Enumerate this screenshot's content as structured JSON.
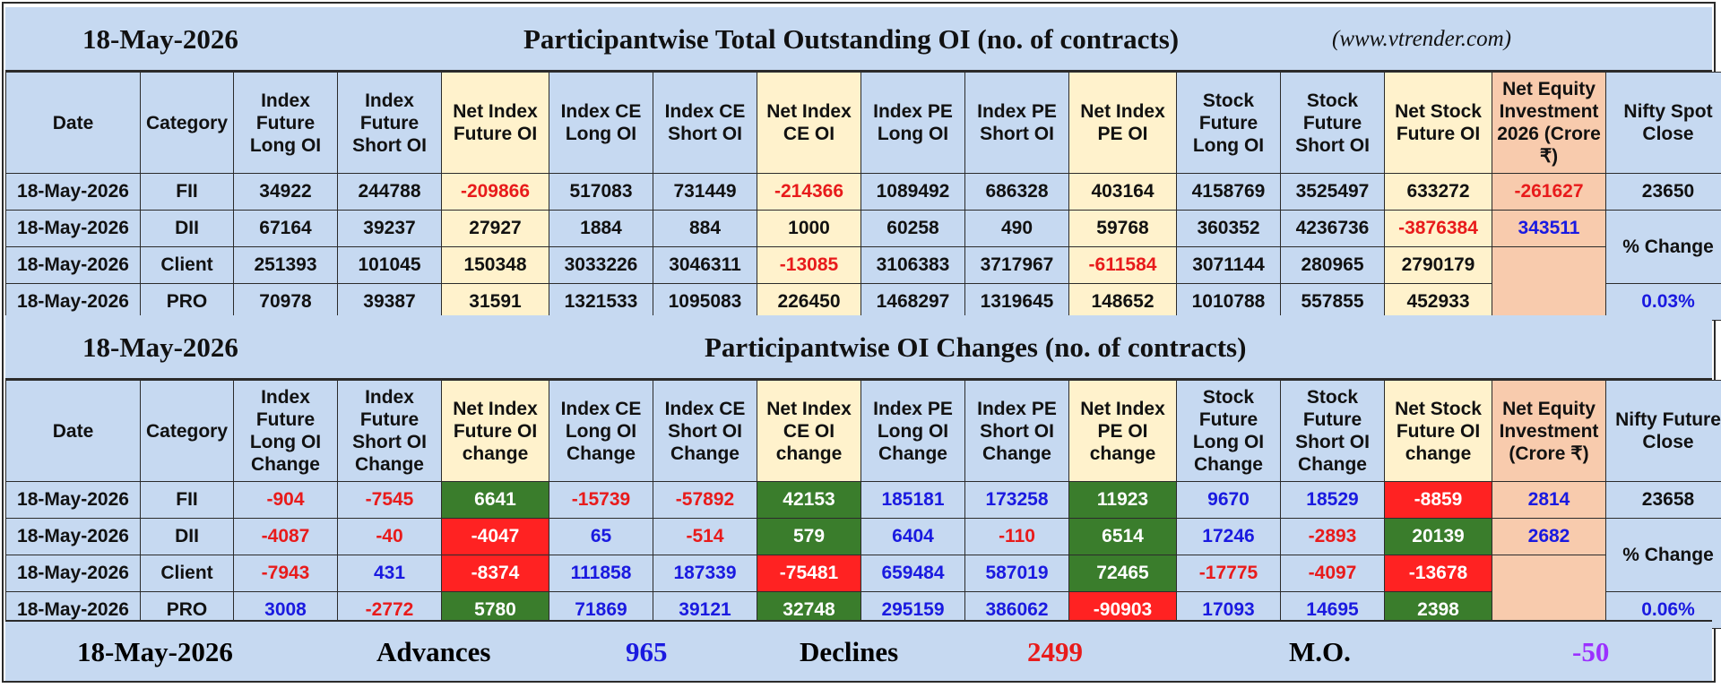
{
  "section1": {
    "date": "18-May-2026",
    "title": "Participantwise Total Outstanding OI (no. of contracts)",
    "site": "(www.vtrender.com)",
    "headers": [
      "Date",
      "Category",
      "Index Future Long OI",
      "Index Future Short OI",
      "Net Index Future OI",
      "Index CE Long OI",
      "Index CE Short OI",
      "Net Index CE OI",
      "Index PE Long OI",
      "Index PE Short OI",
      "Net Index PE OI",
      "Stock Future Long OI",
      "Stock Future Short OI",
      "Net Stock Future OI",
      "Net Equity Investment 2026 (Crore ₹)",
      "Nifty Spot Close"
    ],
    "rows": [
      {
        "date": "18-May-2026",
        "category": "FII",
        "values": [
          "34922",
          "244788",
          "-209866",
          "517083",
          "731449",
          "-214366",
          "1089492",
          "686328",
          "403164",
          "4158769",
          "3525497",
          "633272"
        ],
        "net_equity": "-261627",
        "nifty": "23650"
      },
      {
        "date": "18-May-2026",
        "category": "DII",
        "values": [
          "67164",
          "39237",
          "27927",
          "1884",
          "884",
          "1000",
          "60258",
          "490",
          "59768",
          "360352",
          "4236736",
          "-3876384"
        ],
        "net_equity": "343511",
        "nifty": "% Change"
      },
      {
        "date": "18-May-2026",
        "category": "Client",
        "values": [
          "251393",
          "101045",
          "150348",
          "3033226",
          "3046311",
          "-13085",
          "3106383",
          "3717967",
          "-611584",
          "3071144",
          "280965",
          "2790179"
        ],
        "net_equity": "",
        "nifty": ""
      },
      {
        "date": "18-May-2026",
        "category": "PRO",
        "values": [
          "70978",
          "39387",
          "31591",
          "1321533",
          "1095083",
          "226450",
          "1468297",
          "1319645",
          "148652",
          "1010788",
          "557855",
          "452933"
        ],
        "net_equity": "",
        "nifty": "0.03%"
      }
    ]
  },
  "section2": {
    "date": "18-May-2026",
    "title": "Participantwise OI Changes (no. of contracts)",
    "headers": [
      "Date",
      "Category",
      "Index Future Long OI Change",
      "Index Future Short OI Change",
      "Net Index Future OI change",
      "Index CE Long OI Change",
      "Index CE Short OI Change",
      "Net Index CE OI change",
      "Index PE Long OI Change",
      "Index PE Short OI Change",
      "Net Index PE OI change",
      "Stock Future Long OI Change",
      "Stock Future Short OI Change",
      "Net Stock Future OI change",
      "Net Equity Investment (Crore ₹)",
      "Nifty Future Close"
    ],
    "rows": [
      {
        "date": "18-May-2026",
        "category": "FII",
        "values": [
          "-904",
          "-7545",
          "6641",
          "-15739",
          "-57892",
          "42153",
          "185181",
          "173258",
          "11923",
          "9670",
          "18529",
          "-8859"
        ],
        "net_equity": "2814",
        "nifty": "23658"
      },
      {
        "date": "18-May-2026",
        "category": "DII",
        "values": [
          "-4087",
          "-40",
          "-4047",
          "65",
          "-514",
          "579",
          "6404",
          "-110",
          "6514",
          "17246",
          "-2893",
          "20139"
        ],
        "net_equity": "2682",
        "nifty": "% Change"
      },
      {
        "date": "18-May-2026",
        "category": "Client",
        "values": [
          "-7943",
          "431",
          "-8374",
          "111858",
          "187339",
          "-75481",
          "659484",
          "587019",
          "72465",
          "-17775",
          "-4097",
          "-13678"
        ],
        "net_equity": "",
        "nifty": ""
      },
      {
        "date": "18-May-2026",
        "category": "PRO",
        "values": [
          "3008",
          "-2772",
          "5780",
          "71869",
          "39121",
          "32748",
          "295159",
          "386062",
          "-90903",
          "17093",
          "14695",
          "2398"
        ],
        "net_equity": "",
        "nifty": "0.06%"
      }
    ]
  },
  "footer": {
    "date": "18-May-2026",
    "advances_label": "Advances",
    "advances": "965",
    "declines_label": "Declines",
    "declines": "2499",
    "mo_label": "M.O.",
    "mo": "-50"
  },
  "colors": {
    "header_blue": "#c6d9f1",
    "cream": "#fff2cc",
    "peach": "#f8cbad",
    "green": "#3a7d2c",
    "red": "#ff2222",
    "text_red": "#e81b1b",
    "text_blue": "#1a1ae0",
    "mo_purple": "#9b30ff"
  }
}
